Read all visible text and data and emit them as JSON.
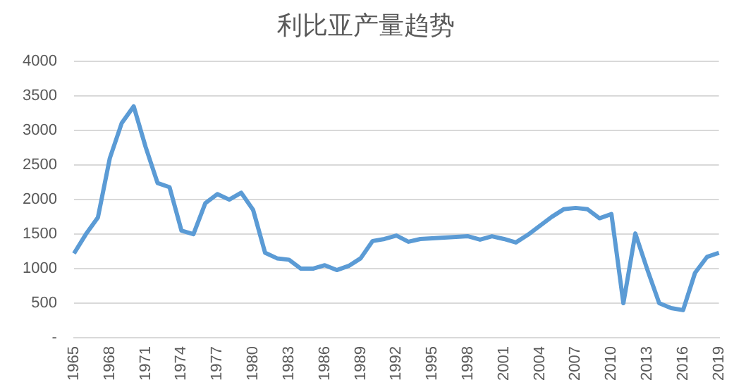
{
  "chart_data": {
    "type": "line",
    "title": "利比亚产量趋势",
    "categories": [
      "1965",
      null,
      null,
      "1968",
      null,
      null,
      "1971",
      null,
      null,
      "1974",
      null,
      null,
      "1977",
      null,
      null,
      "1980",
      null,
      null,
      "1983",
      null,
      null,
      "1986",
      null,
      null,
      "1989",
      null,
      null,
      "1992",
      null,
      null,
      "1995",
      null,
      null,
      "1998",
      null,
      null,
      "2001",
      null,
      null,
      "2004",
      null,
      null,
      "2007",
      null,
      null,
      "2010",
      null,
      null,
      "2013",
      null,
      null,
      "2016",
      null,
      null,
      "2019"
    ],
    "series": [
      {
        "color": "#5b9bd5",
        "values": [
          1220,
          1500,
          1740,
          2600,
          3110,
          3350,
          2760,
          2240,
          2180,
          1550,
          1500,
          1950,
          2080,
          2000,
          2100,
          1850,
          1230,
          1150,
          1130,
          1000,
          1000,
          1050,
          980,
          1040,
          1150,
          1400,
          1430,
          1480,
          1390,
          1430,
          1440,
          1450,
          1460,
          1470,
          1420,
          1470,
          1430,
          1380,
          1490,
          1620,
          1750,
          1860,
          1880,
          1860,
          1730,
          1790,
          500,
          1510,
          990,
          500,
          430,
          400,
          940,
          1170,
          1230
        ]
      }
    ],
    "ylim": [
      0,
      4000
    ],
    "yticks": [
      {
        "value": 0,
        "label": "-"
      },
      500,
      1000,
      1500,
      2000,
      2500,
      3000,
      3500,
      4000
    ],
    "grid": "y",
    "legend": false,
    "marker": "none",
    "line_style": "solid"
  }
}
